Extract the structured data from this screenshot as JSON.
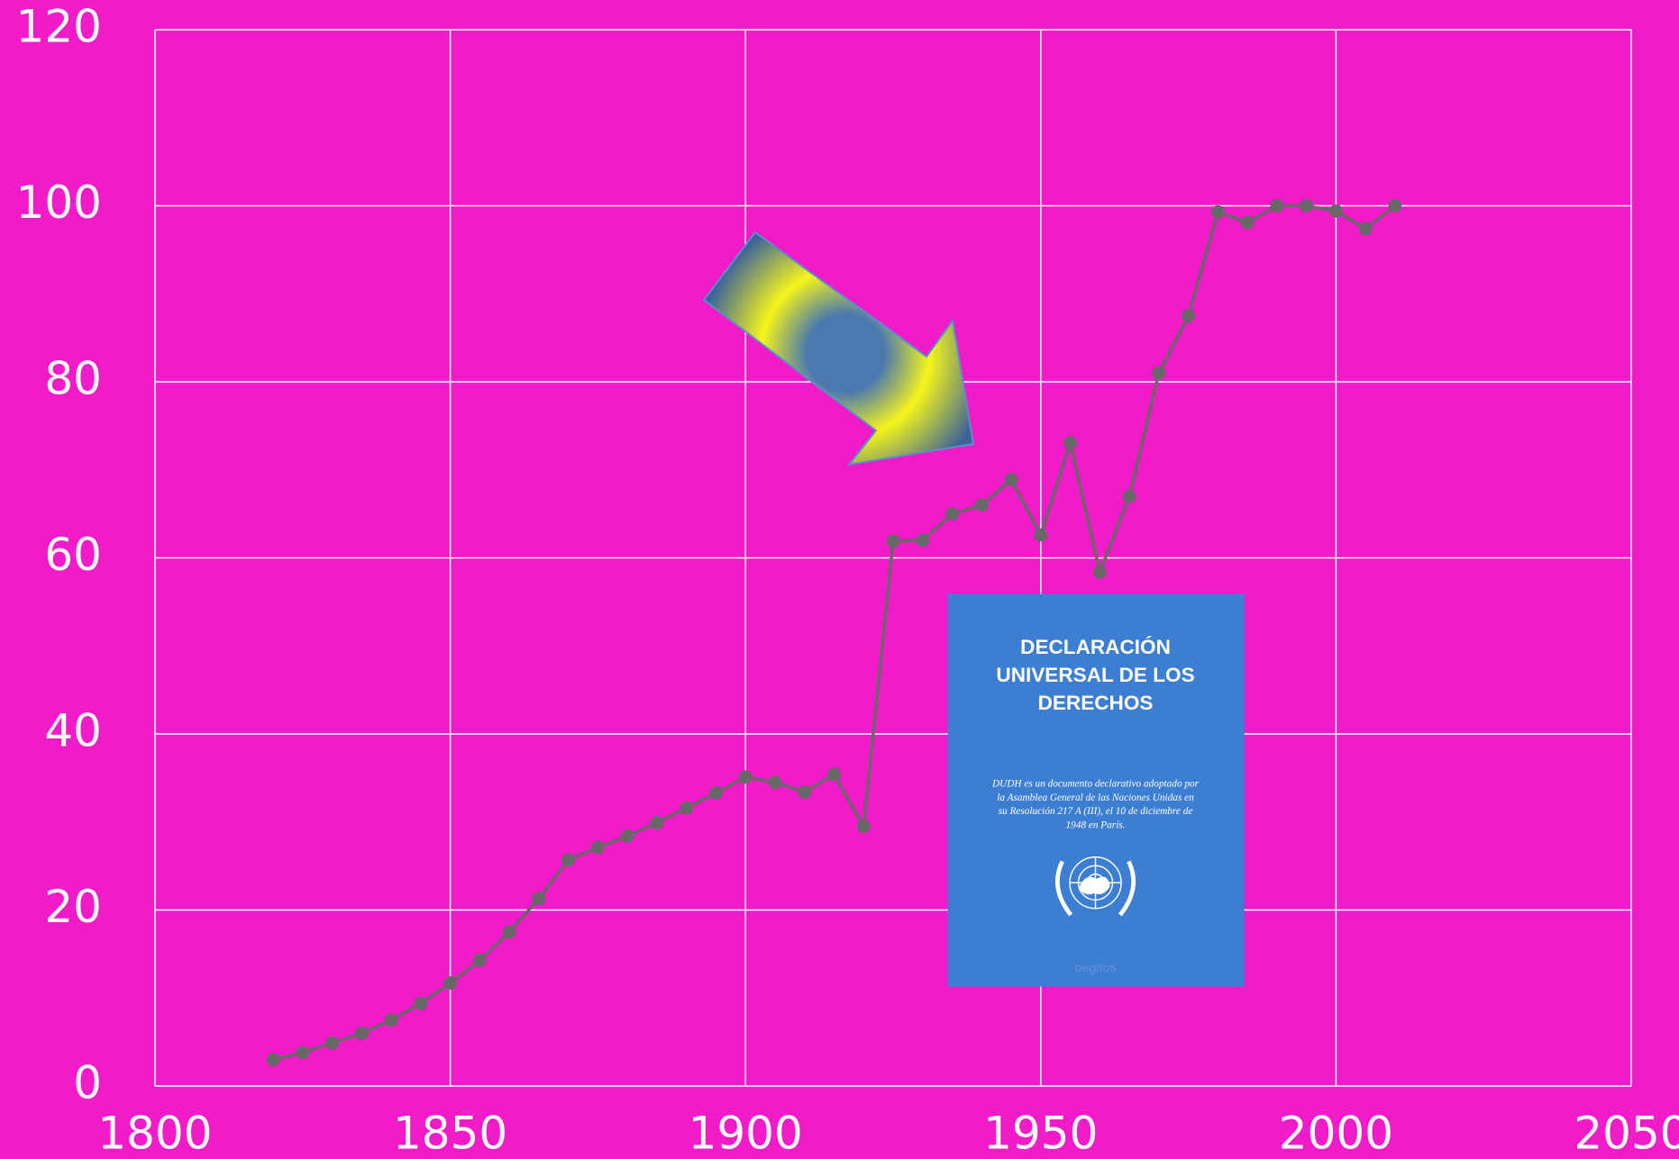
{
  "chart_data": {
    "type": "line",
    "x": [
      1820,
      1825,
      1830,
      1835,
      1840,
      1845,
      1850,
      1855,
      1860,
      1865,
      1870,
      1875,
      1880,
      1885,
      1890,
      1895,
      1900,
      1905,
      1910,
      1915,
      1920,
      1925,
      1930,
      1935,
      1940,
      1945,
      1950,
      1955,
      1960,
      1965,
      1970,
      1975,
      1980,
      1985,
      1990,
      1995,
      2000,
      2005,
      2010
    ],
    "values": [
      3.0,
      3.8,
      4.9,
      6.0,
      7.5,
      9.4,
      11.7,
      14.3,
      17.5,
      21.3,
      25.7,
      27.1,
      28.4,
      29.9,
      31.6,
      33.3,
      35.1,
      34.5,
      33.4,
      35.4,
      29.5,
      61.9,
      62.0,
      65.0,
      66.0,
      68.9,
      62.6,
      73.1,
      58.4,
      67.0,
      81.0,
      87.5,
      99.3,
      98.1,
      100,
      100,
      99.4,
      97.4,
      100
    ],
    "color": "#686868",
    "xlim": [
      1800,
      2050
    ],
    "xticks": [
      1800,
      1850,
      1900,
      1950,
      2000,
      2050
    ],
    "ylim": [
      0,
      120
    ],
    "yticks": [
      0,
      20,
      40,
      60,
      80,
      100,
      120
    ],
    "grid": true,
    "cover_title": [
      "DECLARACIÓN",
      "UNIVERSAL DE LOS",
      "DERECHOS"
    ],
    "cover_text": [
      "DUDH es un documento declarativo adoptado por",
      "la Asamblea General de las Naciones Unidas en",
      "su Resolución 217 A (III), el 10 de diciembre de",
      "1948 en París."
    ],
    "cover_publisher": "oegitos"
  }
}
